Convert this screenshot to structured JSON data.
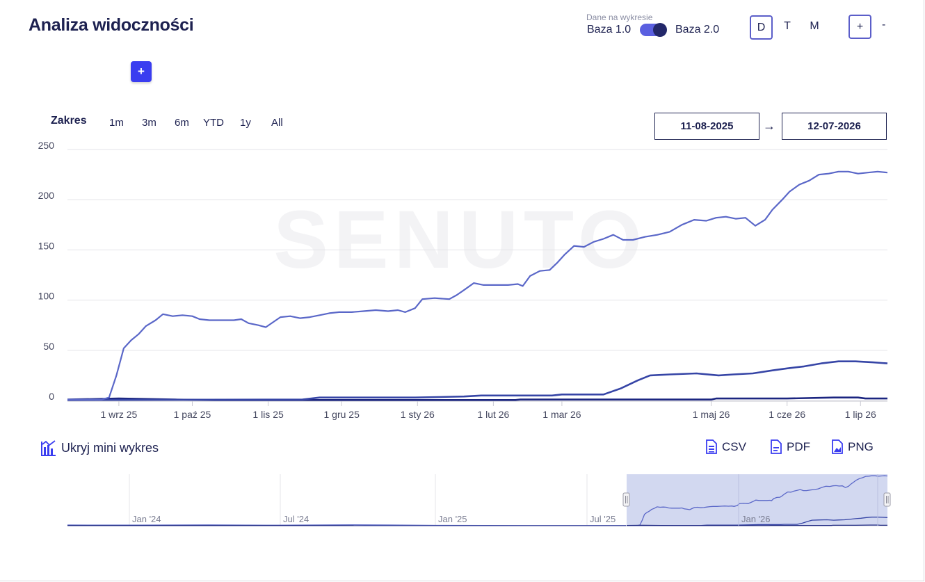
{
  "header": {
    "title": "Analiza widoczności",
    "add_label": "+",
    "data_caption": "Dane na wykresie",
    "base_left": "Baza 1.0",
    "base_right": "Baza 2.0",
    "periods": [
      "D",
      "T",
      "M"
    ],
    "zoom_in": "+",
    "zoom_out": "-"
  },
  "range": {
    "label": "Zakres",
    "buttons": [
      "1m",
      "3m",
      "6m",
      "YTD",
      "1y",
      "All"
    ],
    "from": "11-08-2025",
    "arrow": "→",
    "to": "12-07-2026"
  },
  "toolbar": {
    "hide_mini": "Ukryj mini wykres",
    "csv": "CSV",
    "pdf": "PDF",
    "png": "PNG"
  },
  "colors": {
    "series_main": "#5a67c8",
    "series_mid": "#3645a6",
    "series_low": "#1b2580",
    "navigator_fill": "#cdd4ee",
    "accent": "#3a3df0"
  },
  "chart_data": {
    "type": "line",
    "watermark": "SENUTO",
    "ylim": [
      0,
      250
    ],
    "yticks": [
      0,
      50,
      100,
      150,
      200,
      250
    ],
    "xlim": [
      "2025-08-11",
      "2026-07-12"
    ],
    "xticks": [
      {
        "date": "2025-09-01",
        "label": "1 wrz 25"
      },
      {
        "date": "2025-10-01",
        "label": "1 paź 25"
      },
      {
        "date": "2025-11-01",
        "label": "1 lis 25"
      },
      {
        "date": "2025-12-01",
        "label": "1 gru 25"
      },
      {
        "date": "2026-01-01",
        "label": "1 sty 26"
      },
      {
        "date": "2026-02-01",
        "label": "1 lut 26"
      },
      {
        "date": "2026-03-01",
        "label": "1 mar 26"
      },
      {
        "date": "2026-05-01",
        "label": "1 maj 26"
      },
      {
        "date": "2026-06-01",
        "label": "1 cze 26"
      },
      {
        "date": "2026-07-01",
        "label": "1 lip 26"
      }
    ],
    "series": [
      {
        "points": [
          [
            "2025-08-11",
            1
          ],
          [
            "2025-08-25",
            1
          ],
          [
            "2025-08-28",
            3
          ],
          [
            "2025-08-31",
            25
          ],
          [
            "2025-09-03",
            52
          ],
          [
            "2025-09-06",
            60
          ],
          [
            "2025-09-09",
            66
          ],
          [
            "2025-09-12",
            74
          ],
          [
            "2025-09-16",
            80
          ],
          [
            "2025-09-19",
            86
          ],
          [
            "2025-09-23",
            84
          ],
          [
            "2025-09-27",
            85
          ],
          [
            "2025-10-01",
            84
          ],
          [
            "2025-10-04",
            81
          ],
          [
            "2025-10-08",
            80
          ],
          [
            "2025-10-14",
            80
          ],
          [
            "2025-10-18",
            80
          ],
          [
            "2025-10-21",
            81
          ],
          [
            "2025-10-24",
            77
          ],
          [
            "2025-10-28",
            75
          ],
          [
            "2025-10-31",
            73
          ],
          [
            "2025-11-03",
            78
          ],
          [
            "2025-11-06",
            83
          ],
          [
            "2025-11-10",
            84
          ],
          [
            "2025-11-14",
            82
          ],
          [
            "2025-11-18",
            83
          ],
          [
            "2025-11-22",
            85
          ],
          [
            "2025-11-26",
            87
          ],
          [
            "2025-11-30",
            88
          ],
          [
            "2025-12-05",
            88
          ],
          [
            "2025-12-10",
            89
          ],
          [
            "2025-12-15",
            90
          ],
          [
            "2025-12-20",
            89
          ],
          [
            "2025-12-24",
            90
          ],
          [
            "2025-12-27",
            88
          ],
          [
            "2025-12-31",
            92
          ],
          [
            "2026-01-03",
            101
          ],
          [
            "2026-01-08",
            102
          ],
          [
            "2026-01-14",
            101
          ],
          [
            "2026-01-17",
            105
          ],
          [
            "2026-01-20",
            110
          ],
          [
            "2026-01-24",
            117
          ],
          [
            "2026-01-28",
            115
          ],
          [
            "2026-02-02",
            115
          ],
          [
            "2026-02-07",
            115
          ],
          [
            "2026-02-11",
            116
          ],
          [
            "2026-02-13",
            114
          ],
          [
            "2026-02-16",
            124
          ],
          [
            "2026-02-20",
            129
          ],
          [
            "2026-02-24",
            130
          ],
          [
            "2026-02-27",
            137
          ],
          [
            "2026-03-02",
            145
          ],
          [
            "2026-03-06",
            154
          ],
          [
            "2026-03-10",
            153
          ],
          [
            "2026-03-14",
            158
          ],
          [
            "2026-03-18",
            161
          ],
          [
            "2026-03-22",
            165
          ],
          [
            "2026-03-26",
            160
          ],
          [
            "2026-03-30",
            160
          ],
          [
            "2026-04-04",
            163
          ],
          [
            "2026-04-09",
            165
          ],
          [
            "2026-04-14",
            168
          ],
          [
            "2026-04-19",
            175
          ],
          [
            "2026-04-24",
            180
          ],
          [
            "2026-04-29",
            179
          ],
          [
            "2026-05-03",
            182
          ],
          [
            "2026-05-07",
            183
          ],
          [
            "2026-05-11",
            181
          ],
          [
            "2026-05-15",
            182
          ],
          [
            "2026-05-19",
            174
          ],
          [
            "2026-05-23",
            180
          ],
          [
            "2026-05-26",
            190
          ],
          [
            "2026-05-30",
            200
          ],
          [
            "2026-06-02",
            208
          ],
          [
            "2026-06-06",
            215
          ],
          [
            "2026-06-10",
            219
          ],
          [
            "2026-06-14",
            225
          ],
          [
            "2026-06-18",
            226
          ],
          [
            "2026-06-22",
            228
          ],
          [
            "2026-06-26",
            228
          ],
          [
            "2026-06-30",
            226
          ],
          [
            "2026-07-04",
            227
          ],
          [
            "2026-07-08",
            228
          ],
          [
            "2026-07-12",
            227
          ]
        ]
      },
      {
        "points": [
          [
            "2025-08-11",
            0.5
          ],
          [
            "2025-11-15",
            1
          ],
          [
            "2025-11-22",
            3
          ],
          [
            "2025-12-31",
            3
          ],
          [
            "2026-01-20",
            4
          ],
          [
            "2026-01-27",
            5
          ],
          [
            "2026-02-25",
            5
          ],
          [
            "2026-03-01",
            6
          ],
          [
            "2026-03-18",
            6
          ],
          [
            "2026-03-25",
            12
          ],
          [
            "2026-04-01",
            20
          ],
          [
            "2026-04-06",
            25
          ],
          [
            "2026-04-14",
            26
          ],
          [
            "2026-04-25",
            27
          ],
          [
            "2026-05-04",
            25
          ],
          [
            "2026-05-10",
            26
          ],
          [
            "2026-05-18",
            27
          ],
          [
            "2026-05-26",
            30
          ],
          [
            "2026-06-01",
            32
          ],
          [
            "2026-06-08",
            34
          ],
          [
            "2026-06-15",
            37
          ],
          [
            "2026-06-22",
            39
          ],
          [
            "2026-06-29",
            39
          ],
          [
            "2026-07-06",
            38
          ],
          [
            "2026-07-12",
            37
          ]
        ]
      },
      {
        "points": [
          [
            "2025-08-11",
            1
          ],
          [
            "2025-09-01",
            2
          ],
          [
            "2025-09-24",
            1
          ],
          [
            "2025-10-10",
            0.5
          ],
          [
            "2026-02-10",
            0.5
          ],
          [
            "2026-02-12",
            1
          ],
          [
            "2026-05-01",
            1
          ],
          [
            "2026-05-03",
            2
          ],
          [
            "2026-06-01",
            2
          ],
          [
            "2026-06-20",
            3
          ],
          [
            "2026-06-30",
            3
          ],
          [
            "2026-07-03",
            2
          ],
          [
            "2026-07-12",
            2
          ]
        ]
      }
    ],
    "navigator": {
      "labels": [
        "Jan '24",
        "Jul '24",
        "Jan '25",
        "Jul '25",
        "Jan '26"
      ]
    }
  }
}
